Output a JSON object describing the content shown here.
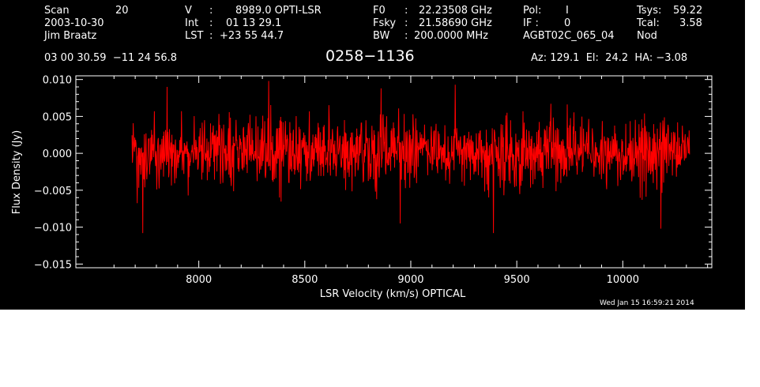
{
  "header": {
    "scan_label": "Scan",
    "scan_value": "20",
    "date": "2003-10-30",
    "observer": "Jim Braatz",
    "v_label": "V",
    "v_sep": ":",
    "v_value": "8989.0 OPTI-LSR",
    "int_label": "Int",
    "int_sep": ":",
    "int_value": "01 13 29.1",
    "lst_label": "LST",
    "lst_sep": ":",
    "lst_value": "+23 55 44.7",
    "f0_label": "F0",
    "f0_sep": ":",
    "f0_value": "22.23508 GHz",
    "fsky_label": "Fsky",
    "fsky_sep": ":",
    "fsky_value": "21.58690 GHz",
    "bw_label": "BW",
    "bw_sep": ":",
    "bw_value": "200.0000 MHz",
    "pol_label": "Pol:",
    "pol_value": "I",
    "if_label": "IF :",
    "if_value": "0",
    "project": "AGBT02C_065_04",
    "tsys_label": "Tsys:",
    "tsys_value": "59.22",
    "tcal_label": "Tcal:",
    "tcal_value": "3.58",
    "mode": "Nod",
    "coords": "03 00 30.59  −11 24 56.8",
    "source": "0258−1136",
    "az_el_ha": "Az: 129.1  El:  24.2  HA: −3.08"
  },
  "timestamp": "Wed Jan 15 16:59:21 2014",
  "colors": {
    "background": "#000000",
    "axes": "#ffffff",
    "spectrum": "#ff0000"
  },
  "chart_data": {
    "type": "line",
    "title": "0258−1136",
    "xlabel": "LSR Velocity (km/s) OPTICAL",
    "ylabel": "Flux Density (Jy)",
    "xlim": [
      7420,
      10420
    ],
    "ylim": [
      -0.0155,
      0.0105
    ],
    "xticks": [
      8000,
      8500,
      9000,
      9500,
      10000
    ],
    "yticks": [
      0.01,
      0.005,
      0.0,
      -0.005,
      -0.01,
      -0.015
    ],
    "ytick_labels": [
      "0.010",
      "0.005",
      "0.000",
      "−0.005",
      "−0.010",
      "−0.015"
    ],
    "grid": false,
    "legend": "none",
    "noise": {
      "x_start": 7685,
      "x_end": 10315,
      "n_channels": 1400,
      "sigma": 0.0022,
      "seed": 20031030
    },
    "peaks": [
      {
        "x": 7850,
        "y": 0.009
      },
      {
        "x": 8330,
        "y": 0.0098
      },
      {
        "x": 8860,
        "y": 0.0088
      },
      {
        "x": 9210,
        "y": 0.0093
      }
    ],
    "troughs": [
      {
        "x": 7735,
        "y": -0.0108
      },
      {
        "x": 9390,
        "y": -0.0108
      },
      {
        "x": 10180,
        "y": -0.0102
      },
      {
        "x": 8950,
        "y": -0.0095
      }
    ]
  }
}
